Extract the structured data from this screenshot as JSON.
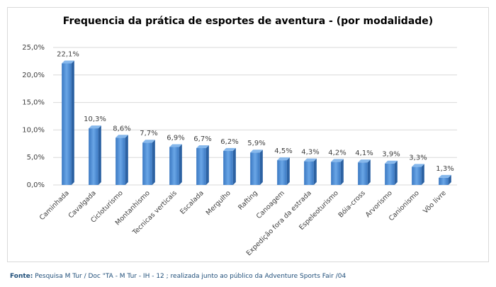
{
  "chart_data": {
    "type": "bar3d",
    "title": "Frequencia da prática de esportes de aventura - (por modalidade)",
    "categories": [
      "Caminhada",
      "Cavalgada",
      "Cicloturismo",
      "Montanhismo",
      "Tecnicas verticais",
      "Escalada",
      "Mergulho",
      "Rafting",
      "Canoagem",
      "Expedição fora da estrada",
      "Espeleoturismo",
      "Bóia-cross",
      "Arvorismo",
      "Canionismo",
      "Vôo livre"
    ],
    "values": [
      22.1,
      10.3,
      8.6,
      7.7,
      6.9,
      6.7,
      6.2,
      5.9,
      4.5,
      4.3,
      4.2,
      4.1,
      3.9,
      3.3,
      1.3
    ],
    "value_labels": [
      "22,1%",
      "10,3%",
      "8,6%",
      "7,7%",
      "6,9%",
      "6,7%",
      "6,2%",
      "5,9%",
      "4,5%",
      "4,3%",
      "4,2%",
      "4,1%",
      "3,9%",
      "3,3%",
      "1,3%"
    ],
    "color": "#4a8bd4",
    "ylim": [
      0,
      25
    ],
    "yticks": [
      {
        "value": 0,
        "label": "0,0%"
      },
      {
        "value": 5,
        "label": "5,0%"
      },
      {
        "value": 10,
        "label": "10,0%"
      },
      {
        "value": 15,
        "label": "15,0%"
      },
      {
        "value": 20,
        "label": "20,0%"
      },
      {
        "value": 25,
        "label": "25,0%"
      }
    ],
    "grid": true,
    "source": {
      "label": "Fonte:",
      "text": "Pesquisa M Tur / Doc \"TA - M Tur - IH - 12 ;   realizada junto ao público da Adventure Sports Fair /04"
    }
  }
}
